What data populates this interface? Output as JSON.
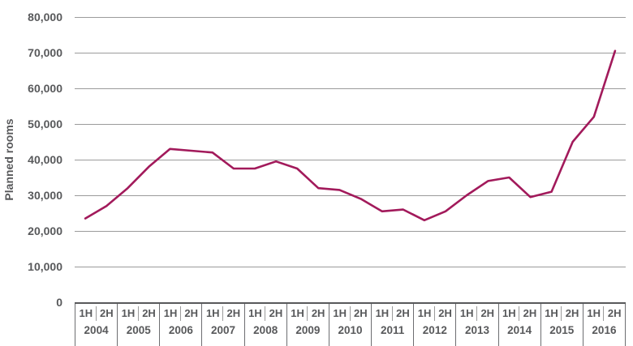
{
  "chart_data": {
    "type": "line",
    "title": "",
    "ylabel": "Planned rooms",
    "xlabel": "",
    "ylim": [
      0,
      80000
    ],
    "ytick_step": 10000,
    "ytick_labels": [
      "80,000",
      "70,000",
      "60,000",
      "50,000",
      "40,000",
      "30,000",
      "20,000",
      "10,000",
      "0"
    ],
    "grid": true,
    "legend": "none",
    "line_color": "#a21a5b",
    "gridline_color": "#9b9b9b",
    "axis_text_color": "#58595b",
    "half_labels": [
      "1H",
      "2H"
    ],
    "years": [
      "2004",
      "2005",
      "2006",
      "2007",
      "2008",
      "2009",
      "2010",
      "2011",
      "2012",
      "2013",
      "2014",
      "2015",
      "2016"
    ],
    "categories": [
      "2004 1H",
      "2004 2H",
      "2005 1H",
      "2005 2H",
      "2006 1H",
      "2006 2H",
      "2007 1H",
      "2007 2H",
      "2008 1H",
      "2008 2H",
      "2009 1H",
      "2009 2H",
      "2010 1H",
      "2010 2H",
      "2011 1H",
      "2011 2H",
      "2012 1H",
      "2012 2H",
      "2013 1H",
      "2013 2H",
      "2014 1H",
      "2014 2H",
      "2015 1H",
      "2015 2H",
      "2016 1H",
      "2016 2H"
    ],
    "series": [
      {
        "name": "Planned rooms",
        "values": [
          23500,
          27000,
          32000,
          38000,
          43000,
          42500,
          42000,
          37500,
          37500,
          39500,
          37500,
          32000,
          31500,
          29000,
          25500,
          26000,
          23000,
          25500,
          30000,
          34000,
          35000,
          29500,
          31000,
          45000,
          52000,
          70500
        ]
      }
    ]
  }
}
